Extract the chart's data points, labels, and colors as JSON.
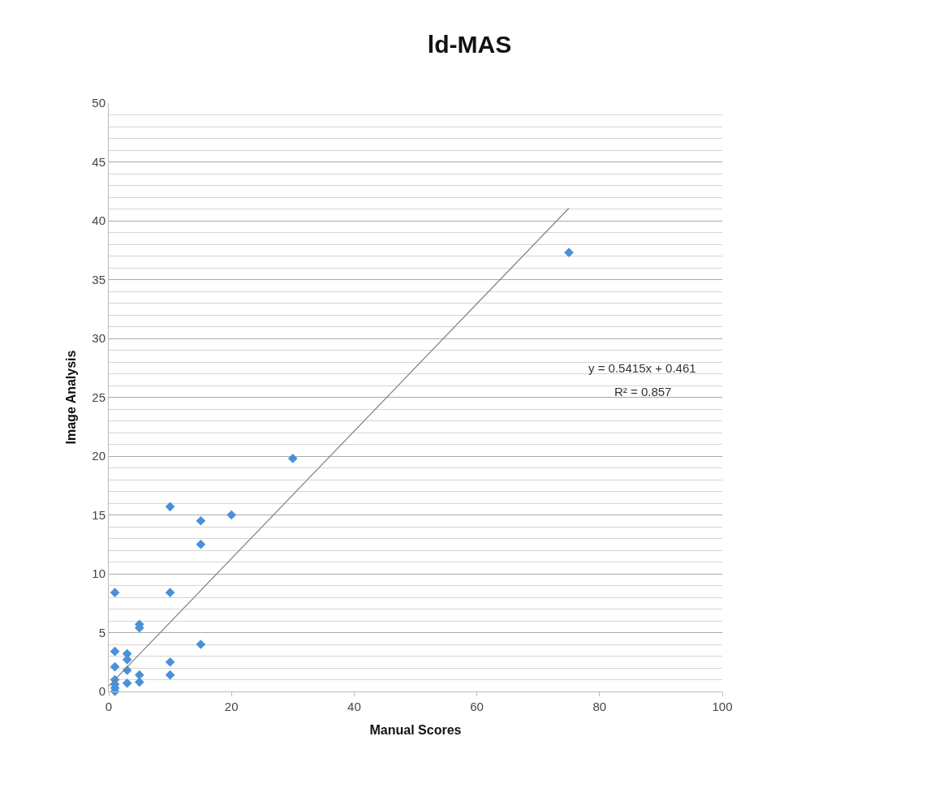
{
  "chart_data": {
    "type": "scatter",
    "title": "ld-MAS",
    "xlabel": "Manual Scores",
    "ylabel": "Image Analysis",
    "xlim": [
      0,
      100
    ],
    "xticks": [
      0,
      20,
      40,
      60,
      80,
      100
    ],
    "ylim": [
      0,
      50
    ],
    "yticks": [
      0,
      5,
      10,
      15,
      20,
      25,
      30,
      35,
      40,
      45,
      50
    ],
    "grid": "y",
    "legend": false,
    "series": [
      {
        "color": "#4a90d9",
        "marker": "diamond",
        "x": [
          75,
          30,
          10,
          15,
          20,
          15,
          1,
          10,
          5,
          5,
          15,
          1,
          3,
          3,
          1,
          10,
          3,
          5,
          10,
          5,
          3,
          1,
          1,
          1,
          1
        ],
        "values": [
          37.3,
          19.8,
          15.7,
          14.5,
          15.0,
          12.5,
          8.4,
          8.4,
          5.7,
          5.4,
          4.0,
          3.4,
          3.2,
          2.7,
          2.1,
          2.5,
          1.8,
          1.4,
          1.4,
          0.8,
          0.7,
          1.0,
          0.6,
          0.3,
          0
        ]
      },
      {
        "type": "line",
        "color": "#808080",
        "x": [
          0,
          75
        ],
        "values": [
          0.46,
          41.07
        ]
      }
    ],
    "annotations": [
      "y = 0.5415x + 0.461",
      "R² = 0.857"
    ]
  }
}
